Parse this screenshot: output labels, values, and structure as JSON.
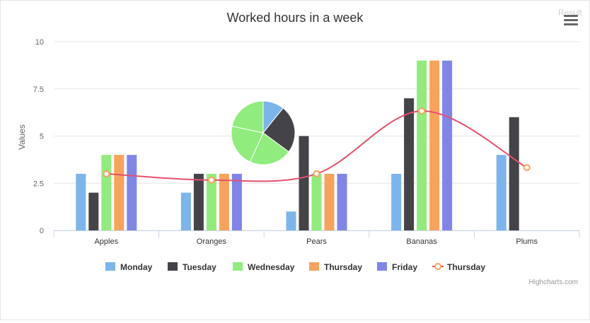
{
  "chart_data": {
    "type": "bar",
    "title": "Worked hours in a week",
    "ylabel": "Values",
    "xlabel": "",
    "ylim": [
      0,
      10
    ],
    "yticks": [
      0,
      2.5,
      5,
      7.5,
      10
    ],
    "ytick_labels": [
      "0",
      "2.5",
      "5",
      "7.5",
      "10"
    ],
    "categories": [
      "Apples",
      "Oranges",
      "Pears",
      "Bananas",
      "Plums"
    ],
    "series": [
      {
        "name": "Monday",
        "type": "column",
        "color": "#7cb5ec",
        "values": [
          3,
          2,
          1,
          3,
          4
        ]
      },
      {
        "name": "Tuesday",
        "type": "column",
        "color": "#434348",
        "values": [
          2,
          3,
          5,
          7,
          6
        ]
      },
      {
        "name": "Wednesday",
        "type": "column",
        "color": "#90ed7d",
        "values": [
          4,
          3,
          3,
          9,
          0
        ]
      },
      {
        "name": "Thursday",
        "type": "column",
        "color": "#f7a35c",
        "values": [
          4,
          3,
          3,
          9,
          0
        ]
      },
      {
        "name": "Friday",
        "type": "column",
        "color": "#8085e9",
        "values": [
          4,
          3,
          3,
          9,
          0
        ]
      },
      {
        "name": "Thursday",
        "type": "spline",
        "color": "#e4506e",
        "values": [
          3,
          2.67,
          3,
          6.33,
          3.33
        ]
      }
    ],
    "pie": {
      "slices": [
        {
          "value": 2,
          "color": "#7cb5ec"
        },
        {
          "value": 4.5,
          "color": "#434348"
        },
        {
          "value": 4,
          "color": "#90ed7d"
        },
        {
          "value": 4,
          "color": "#90ed7d"
        },
        {
          "value": 4,
          "color": "#90ed7d"
        }
      ]
    },
    "grid": true,
    "legend_position": "bottom-center",
    "credits": "Highcharts.com"
  },
  "corner_label": "Result",
  "menu_icon": "hamburger-menu-icon"
}
